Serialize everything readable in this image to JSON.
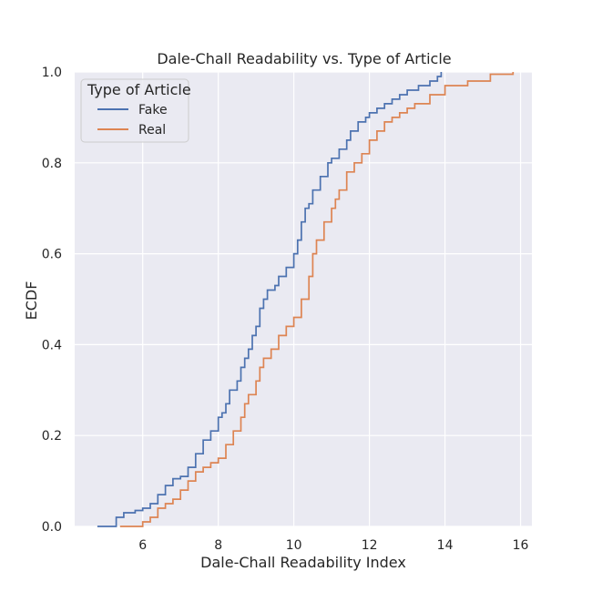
{
  "chart_data": {
    "type": "line",
    "subtype": "ecdf-step",
    "title": "Dale-Chall Readability vs. Type of Article",
    "xlabel": "Dale-Chall Readability Index",
    "ylabel": "ECDF",
    "xlim": [
      4.2,
      16.3
    ],
    "ylim": [
      0.0,
      1.0
    ],
    "x_ticks": [
      "6",
      "8",
      "10",
      "12",
      "14",
      "16"
    ],
    "x_tick_values": [
      6,
      8,
      10,
      12,
      14,
      16
    ],
    "y_ticks": [
      "0.0",
      "0.2",
      "0.4",
      "0.6",
      "0.8",
      "1.0"
    ],
    "y_tick_values": [
      0.0,
      0.2,
      0.4,
      0.6,
      0.8,
      1.0
    ],
    "grid": true,
    "background": "#EAEAF2",
    "legend": {
      "title": "Type of Article",
      "position": "top-left"
    },
    "series": [
      {
        "name": "Fake",
        "color": "#4C72B0",
        "x": [
          4.8,
          5.3,
          5.5,
          5.8,
          6.0,
          6.2,
          6.4,
          6.6,
          6.8,
          7.0,
          7.2,
          7.4,
          7.6,
          7.8,
          8.0,
          8.1,
          8.2,
          8.3,
          8.5,
          8.6,
          8.7,
          8.8,
          8.9,
          9.0,
          9.1,
          9.2,
          9.3,
          9.5,
          9.6,
          9.8,
          10.0,
          10.1,
          10.2,
          10.3,
          10.4,
          10.5,
          10.7,
          10.9,
          11.0,
          11.2,
          11.4,
          11.5,
          11.7,
          11.9,
          12.0,
          12.2,
          12.4,
          12.6,
          12.8,
          13.0,
          13.3,
          13.6,
          13.8,
          13.9
        ],
        "y": [
          0.0,
          0.02,
          0.03,
          0.035,
          0.04,
          0.05,
          0.07,
          0.09,
          0.105,
          0.11,
          0.13,
          0.16,
          0.19,
          0.21,
          0.24,
          0.25,
          0.27,
          0.3,
          0.32,
          0.35,
          0.37,
          0.39,
          0.42,
          0.44,
          0.48,
          0.5,
          0.52,
          0.53,
          0.55,
          0.57,
          0.6,
          0.63,
          0.67,
          0.7,
          0.71,
          0.74,
          0.77,
          0.8,
          0.81,
          0.83,
          0.85,
          0.87,
          0.89,
          0.9,
          0.91,
          0.92,
          0.93,
          0.94,
          0.95,
          0.96,
          0.97,
          0.98,
          0.99,
          1.0
        ]
      },
      {
        "name": "Real",
        "color": "#DD8452",
        "x": [
          5.4,
          6.0,
          6.2,
          6.4,
          6.6,
          6.8,
          7.0,
          7.2,
          7.4,
          7.6,
          7.8,
          8.0,
          8.2,
          8.4,
          8.6,
          8.7,
          8.8,
          9.0,
          9.1,
          9.2,
          9.4,
          9.6,
          9.8,
          10.0,
          10.2,
          10.4,
          10.5,
          10.6,
          10.8,
          11.0,
          11.1,
          11.2,
          11.4,
          11.6,
          11.8,
          12.0,
          12.2,
          12.4,
          12.6,
          12.8,
          13.0,
          13.2,
          13.6,
          14.0,
          14.6,
          15.2,
          15.8
        ],
        "y": [
          0.0,
          0.01,
          0.02,
          0.04,
          0.05,
          0.06,
          0.08,
          0.1,
          0.12,
          0.13,
          0.14,
          0.15,
          0.18,
          0.21,
          0.24,
          0.27,
          0.29,
          0.32,
          0.35,
          0.37,
          0.39,
          0.42,
          0.44,
          0.46,
          0.5,
          0.55,
          0.6,
          0.63,
          0.67,
          0.7,
          0.72,
          0.74,
          0.78,
          0.8,
          0.82,
          0.85,
          0.87,
          0.89,
          0.9,
          0.91,
          0.92,
          0.93,
          0.95,
          0.97,
          0.98,
          0.995,
          1.0
        ]
      }
    ]
  }
}
